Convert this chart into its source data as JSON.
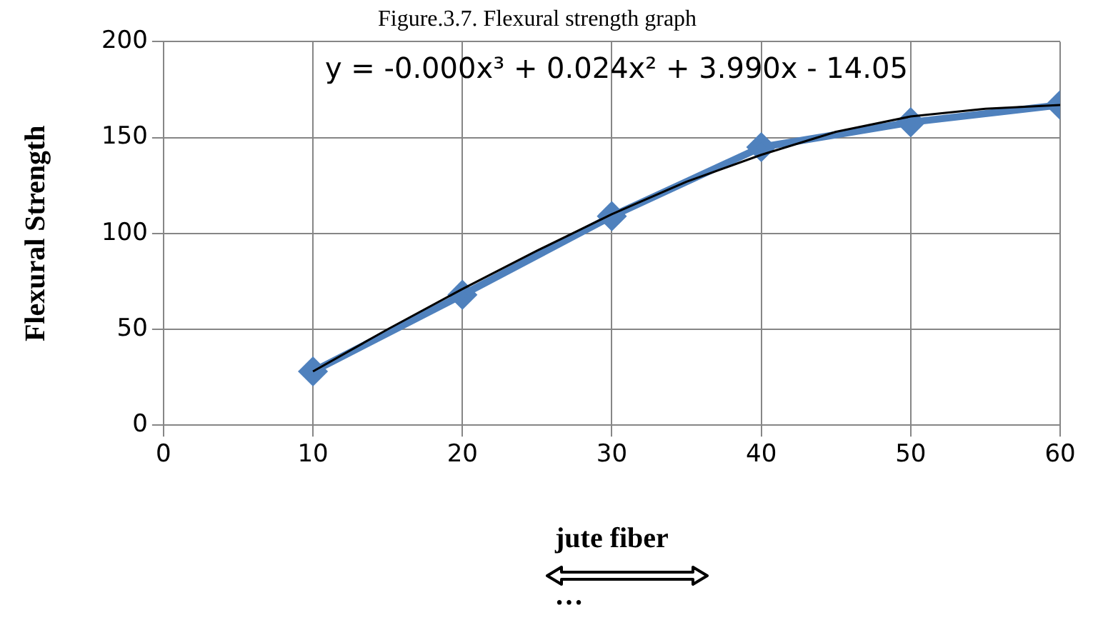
{
  "chart_data": {
    "type": "line",
    "title": "Figure.3.7. Flexural strength graph",
    "xlabel": "jute fiber",
    "ylabel": "Flexural Strength",
    "x": [
      10,
      20,
      30,
      40,
      50,
      60
    ],
    "series": [
      {
        "color": "#4f81bd",
        "values": [
          28,
          68,
          109,
          145,
          158,
          167
        ],
        "marker": "diamond"
      },
      {
        "type": "line",
        "color": "#000000",
        "x": [
          10,
          15,
          20,
          25,
          30,
          35,
          40,
          45,
          50,
          55,
          60
        ],
        "values": [
          28,
          50,
          71,
          91,
          110,
          127,
          141,
          153,
          161,
          165,
          167
        ],
        "marker": "none"
      }
    ],
    "xlim": [
      0,
      60
    ],
    "xticks": [
      0,
      10,
      20,
      30,
      40,
      50,
      60
    ],
    "ylim": [
      0,
      200
    ],
    "yticks": [
      0,
      50,
      100,
      150,
      200
    ],
    "grid": true,
    "legend": false,
    "annotations": [
      "y = -0.000x³ + 0.024x² + 3.990x - 14.05",
      "…"
    ]
  }
}
